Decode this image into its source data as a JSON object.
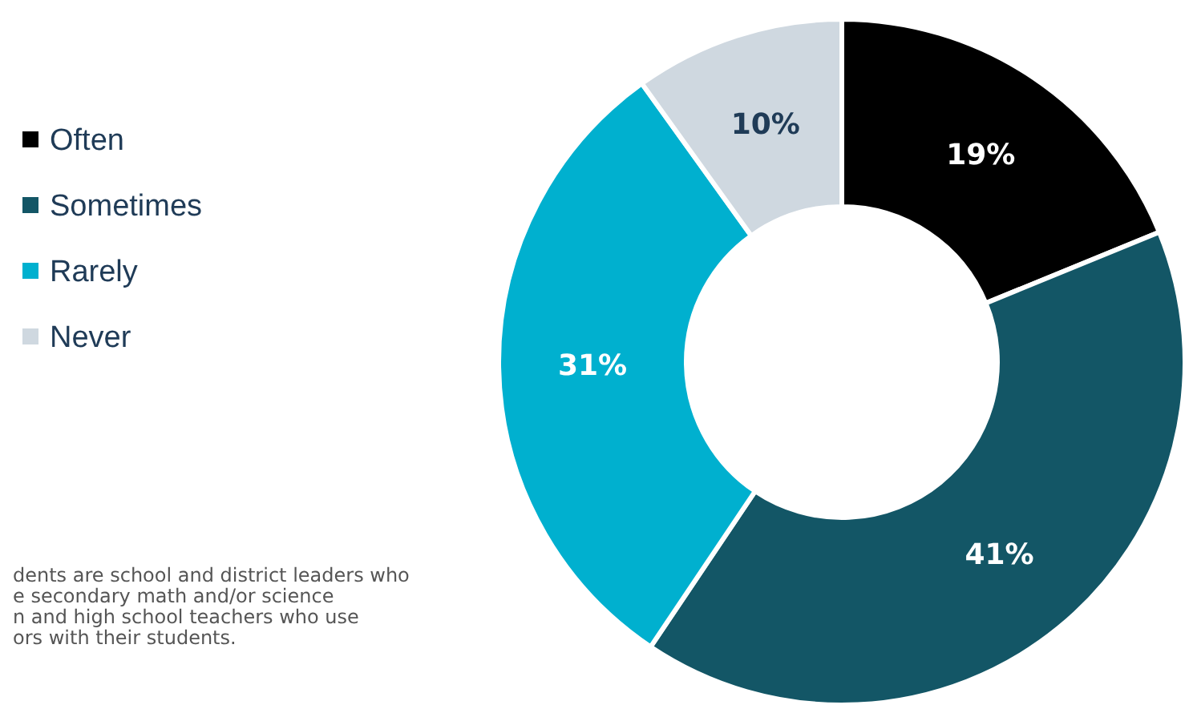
{
  "chart_data": {
    "type": "donut",
    "categories": [
      "Often",
      "Sometimes",
      "Rarely",
      "Never"
    ],
    "values": [
      19,
      41,
      31,
      10
    ],
    "value_labels": [
      "19%",
      "41%",
      "31%",
      "10%"
    ],
    "colors": [
      "#000000",
      "#135666",
      "#00b0cf",
      "#cfd8e0"
    ],
    "legend": "left",
    "annotations": [
      "dents are school and district leaders who",
      "e secondary math and/or science",
      "n and high school teachers who use",
      "ors with their students."
    ]
  }
}
